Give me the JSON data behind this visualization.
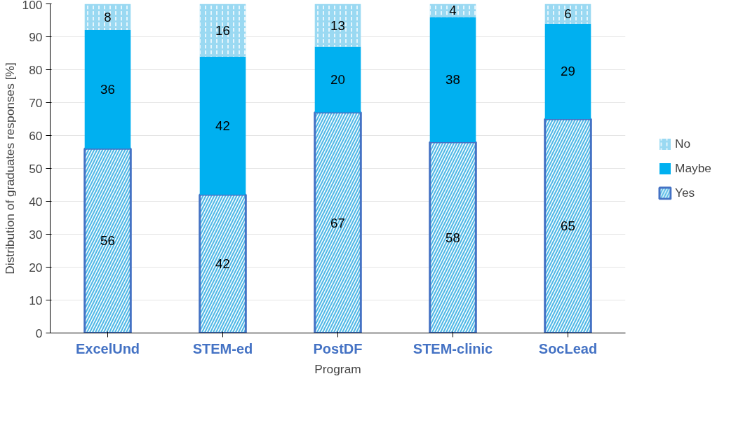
{
  "chart_data": {
    "type": "bar",
    "stacked": true,
    "xlabel": "Program",
    "ylabel": "Distribution of graduates responses [%]",
    "categories": [
      "ExcelUnd",
      "STEM-ed",
      "PostDF",
      "STEM-clinic",
      "SocLead"
    ],
    "series": [
      {
        "name": "Yes",
        "color": "#4fb8e6",
        "values": [
          56,
          42,
          67,
          58,
          65
        ]
      },
      {
        "name": "Maybe",
        "color": "#00b0f0",
        "values": [
          36,
          42,
          20,
          38,
          29
        ]
      },
      {
        "name": "No",
        "color": "#9ad9f2",
        "values": [
          8,
          16,
          13,
          4,
          6
        ]
      }
    ],
    "ylim": [
      0,
      100
    ],
    "yticks": [
      0,
      10,
      20,
      30,
      40,
      50,
      60,
      70,
      80,
      90,
      100
    ],
    "grid": "y",
    "legend": "right",
    "data_labels": true
  }
}
